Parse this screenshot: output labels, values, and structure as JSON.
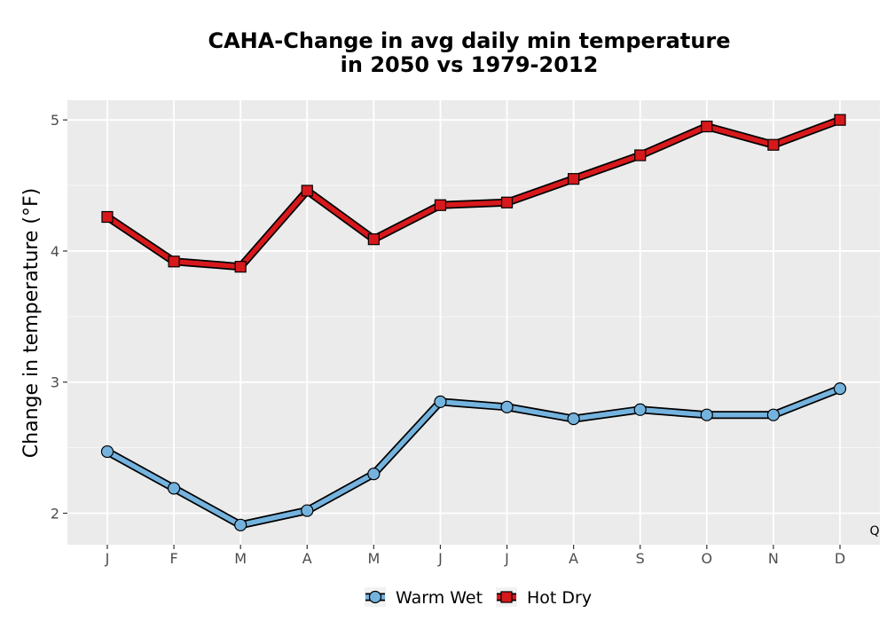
{
  "chart_data": {
    "type": "line",
    "title_line1": "CAHA-Change in avg daily min temperature",
    "title_line2": "in 2050 vs 1979-2012",
    "xlabel": "",
    "ylabel": "Change in temperature (°F)",
    "categories": [
      "J",
      "F",
      "M",
      "A",
      "M",
      "J",
      "J",
      "A",
      "S",
      "O",
      "N",
      "D"
    ],
    "ylim": [
      1.76,
      5.15
    ],
    "yticks": [
      2,
      3,
      4,
      5
    ],
    "grid": true,
    "legend_position": "bottom",
    "corner_label": "Q",
    "series": [
      {
        "name": "Warm Wet",
        "marker": "circle",
        "color": "#74b3de",
        "values": [
          2.47,
          2.19,
          1.91,
          2.02,
          2.3,
          2.85,
          2.81,
          2.72,
          2.79,
          2.75,
          2.75,
          2.95
        ]
      },
      {
        "name": "Hot Dry",
        "marker": "square",
        "color": "#d7191c",
        "values": [
          4.26,
          3.92,
          3.88,
          4.46,
          4.09,
          4.35,
          4.37,
          4.55,
          4.73,
          4.95,
          4.81,
          5.0
        ]
      }
    ]
  }
}
